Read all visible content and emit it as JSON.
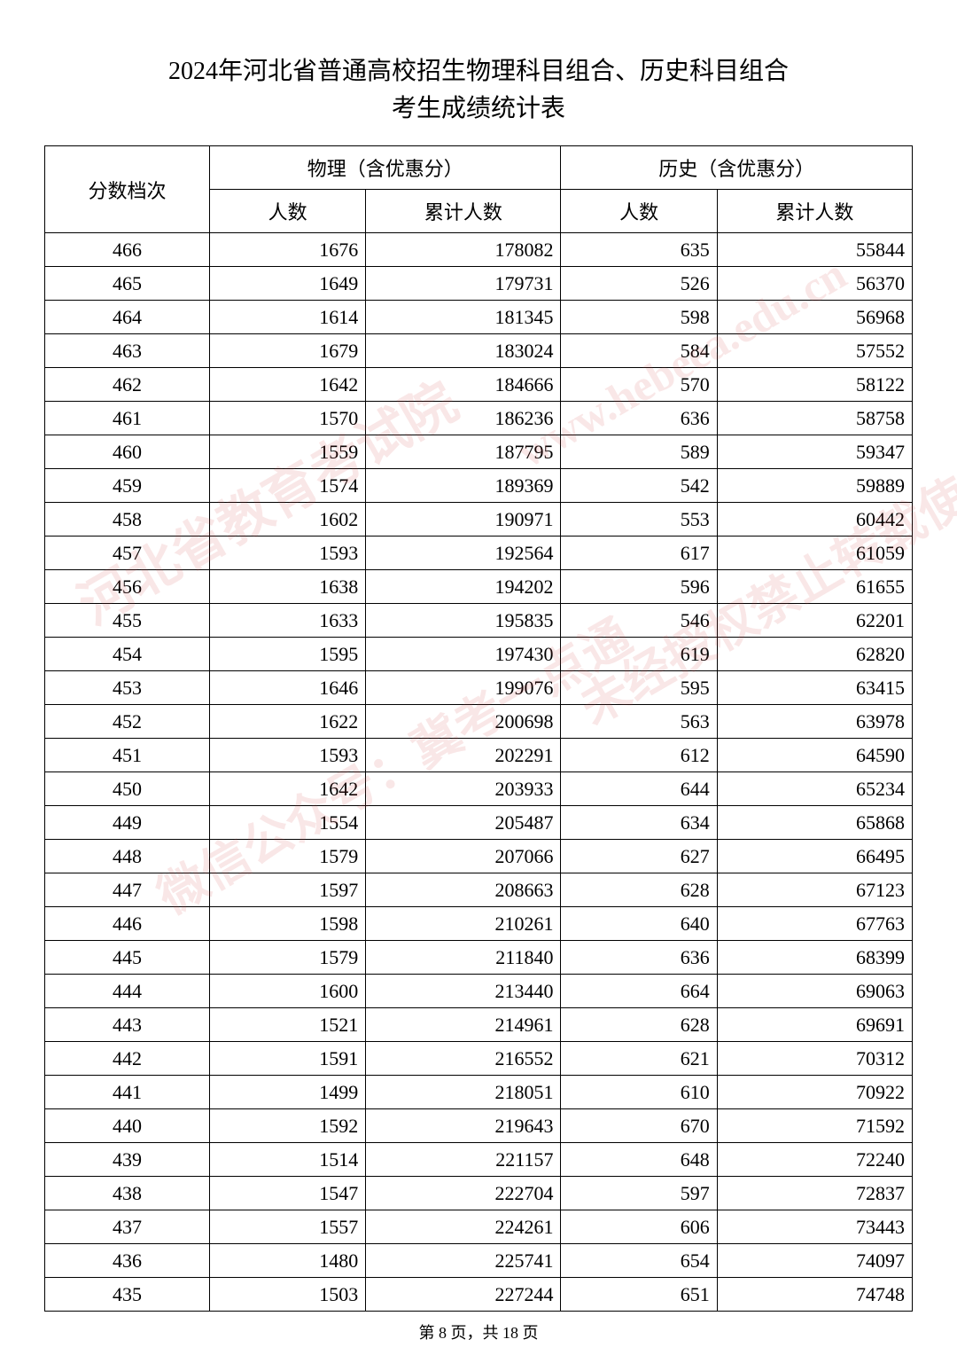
{
  "title": {
    "line1": "2024年河北省普通高校招生物理科目组合、历史科目组合",
    "line2": "考生成绩统计表"
  },
  "table": {
    "type": "table",
    "background_color": "#ffffff",
    "border_color": "#000000",
    "font_size": 22,
    "header_font_size": 22,
    "columns": {
      "score_header": "分数档次",
      "physics_header": "物理（含优惠分）",
      "history_header": "历史（含优惠分）",
      "count_header": "人数",
      "cumulative_header": "累计人数"
    },
    "column_widths": [
      "19%",
      "18%",
      "22.5%",
      "18%",
      "22.5%"
    ],
    "column_alignments": [
      "center",
      "right",
      "right",
      "right",
      "right"
    ],
    "rows": [
      [
        "466",
        "1676",
        "178082",
        "635",
        "55844"
      ],
      [
        "465",
        "1649",
        "179731",
        "526",
        "56370"
      ],
      [
        "464",
        "1614",
        "181345",
        "598",
        "56968"
      ],
      [
        "463",
        "1679",
        "183024",
        "584",
        "57552"
      ],
      [
        "462",
        "1642",
        "184666",
        "570",
        "58122"
      ],
      [
        "461",
        "1570",
        "186236",
        "636",
        "58758"
      ],
      [
        "460",
        "1559",
        "187795",
        "589",
        "59347"
      ],
      [
        "459",
        "1574",
        "189369",
        "542",
        "59889"
      ],
      [
        "458",
        "1602",
        "190971",
        "553",
        "60442"
      ],
      [
        "457",
        "1593",
        "192564",
        "617",
        "61059"
      ],
      [
        "456",
        "1638",
        "194202",
        "596",
        "61655"
      ],
      [
        "455",
        "1633",
        "195835",
        "546",
        "62201"
      ],
      [
        "454",
        "1595",
        "197430",
        "619",
        "62820"
      ],
      [
        "453",
        "1646",
        "199076",
        "595",
        "63415"
      ],
      [
        "452",
        "1622",
        "200698",
        "563",
        "63978"
      ],
      [
        "451",
        "1593",
        "202291",
        "612",
        "64590"
      ],
      [
        "450",
        "1642",
        "203933",
        "644",
        "65234"
      ],
      [
        "449",
        "1554",
        "205487",
        "634",
        "65868"
      ],
      [
        "448",
        "1579",
        "207066",
        "627",
        "66495"
      ],
      [
        "447",
        "1597",
        "208663",
        "628",
        "67123"
      ],
      [
        "446",
        "1598",
        "210261",
        "640",
        "67763"
      ],
      [
        "445",
        "1579",
        "211840",
        "636",
        "68399"
      ],
      [
        "444",
        "1600",
        "213440",
        "664",
        "69063"
      ],
      [
        "443",
        "1521",
        "214961",
        "628",
        "69691"
      ],
      [
        "442",
        "1591",
        "216552",
        "621",
        "70312"
      ],
      [
        "441",
        "1499",
        "218051",
        "610",
        "70922"
      ],
      [
        "440",
        "1592",
        "219643",
        "670",
        "71592"
      ],
      [
        "439",
        "1514",
        "221157",
        "648",
        "72240"
      ],
      [
        "438",
        "1547",
        "222704",
        "597",
        "72837"
      ],
      [
        "437",
        "1557",
        "224261",
        "606",
        "73443"
      ],
      [
        "436",
        "1480",
        "225741",
        "654",
        "74097"
      ],
      [
        "435",
        "1503",
        "227244",
        "651",
        "74748"
      ]
    ]
  },
  "footer": {
    "text": "第 8 页，共 18 页"
  },
  "watermarks": {
    "wm1": "河北省教育考试院",
    "wm2": "微信公众号：冀考一点通",
    "wm3": "www.hebeea.edu.cn",
    "wm4": "未经授权禁止转载使用"
  }
}
